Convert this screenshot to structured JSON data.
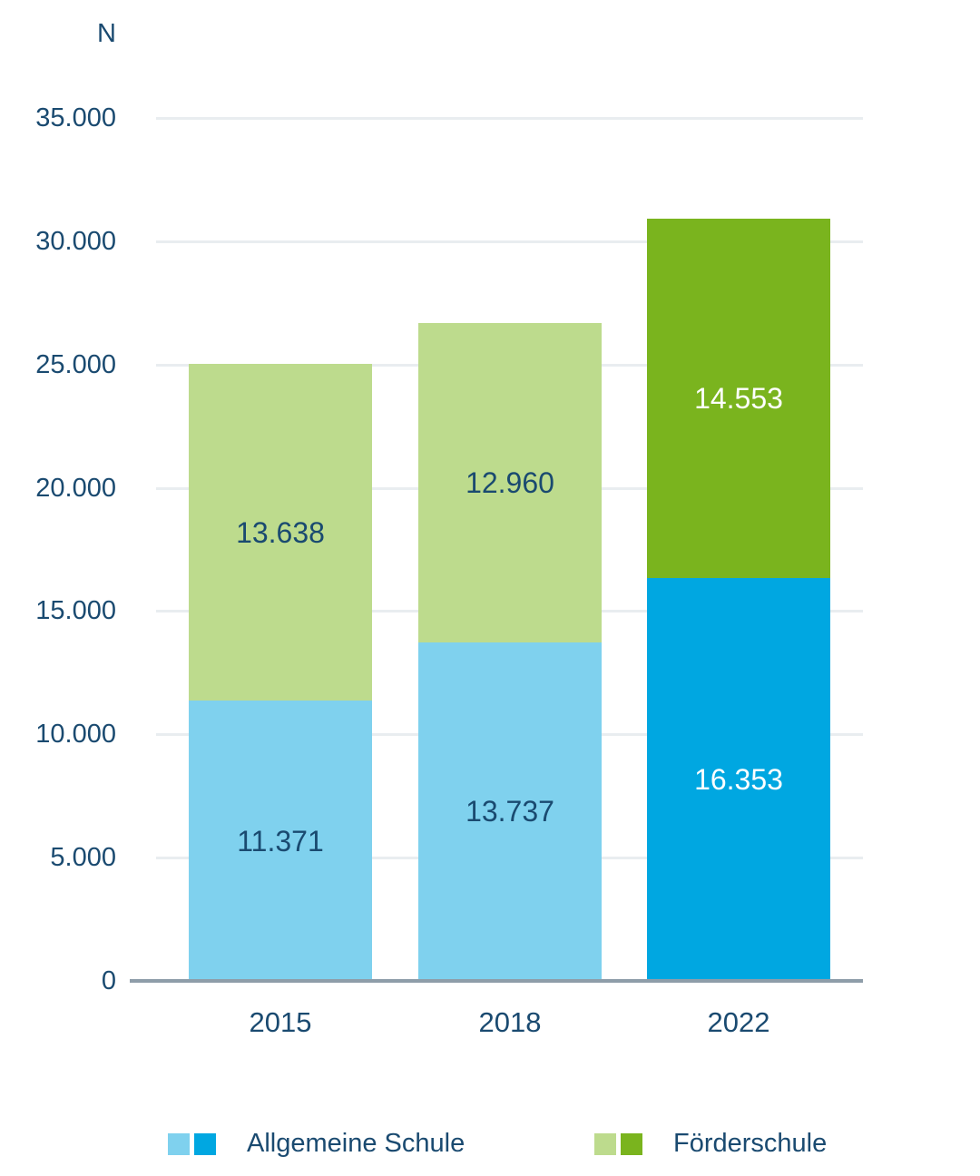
{
  "chart_data": {
    "type": "bar",
    "stacked": true,
    "title": "",
    "ylabel": "N",
    "categories": [
      "2015",
      "2018",
      "2022"
    ],
    "series": [
      {
        "name": "Allgemeine Schule",
        "values": [
          11371,
          13737,
          16353
        ],
        "value_labels": [
          "11.371",
          "13.737",
          "16.353"
        ],
        "bar_colors": [
          "#7FD1EE",
          "#7FD1EE",
          "#00A7E1"
        ],
        "value_label_colors": [
          "#1A4A70",
          "#1A4A70",
          "#FFFFFF"
        ],
        "legend_swatches": [
          "#7FD1EE",
          "#00A7E1"
        ]
      },
      {
        "name": "Förderschule",
        "values": [
          13638,
          12960,
          14553
        ],
        "value_labels": [
          "13.638",
          "12.960",
          "14.553"
        ],
        "bar_colors": [
          "#BDDB8D",
          "#BDDB8D",
          "#7AB41E"
        ],
        "value_label_colors": [
          "#1A4A70",
          "#1A4A70",
          "#FFFFFF"
        ],
        "legend_swatches": [
          "#BDDB8D",
          "#7AB41E"
        ]
      }
    ],
    "y_ticks": [
      {
        "value": 35000,
        "label": "35.000"
      },
      {
        "value": 30000,
        "label": "30.000"
      },
      {
        "value": 25000,
        "label": "25.000"
      },
      {
        "value": 20000,
        "label": "20.000"
      },
      {
        "value": 15000,
        "label": "15.000"
      },
      {
        "value": 10000,
        "label": "10.000"
      },
      {
        "value": 5000,
        "label": "5.000"
      },
      {
        "value": 0,
        "label": "0"
      }
    ],
    "ylim": [
      0,
      35000
    ],
    "grid": true,
    "legend_position": "bottom",
    "colors": {
      "axis_text": "#1A4A70",
      "gridline": "#E9EDF0",
      "baseline": "#8E9DA9",
      "background": "#FFFFFF"
    }
  }
}
